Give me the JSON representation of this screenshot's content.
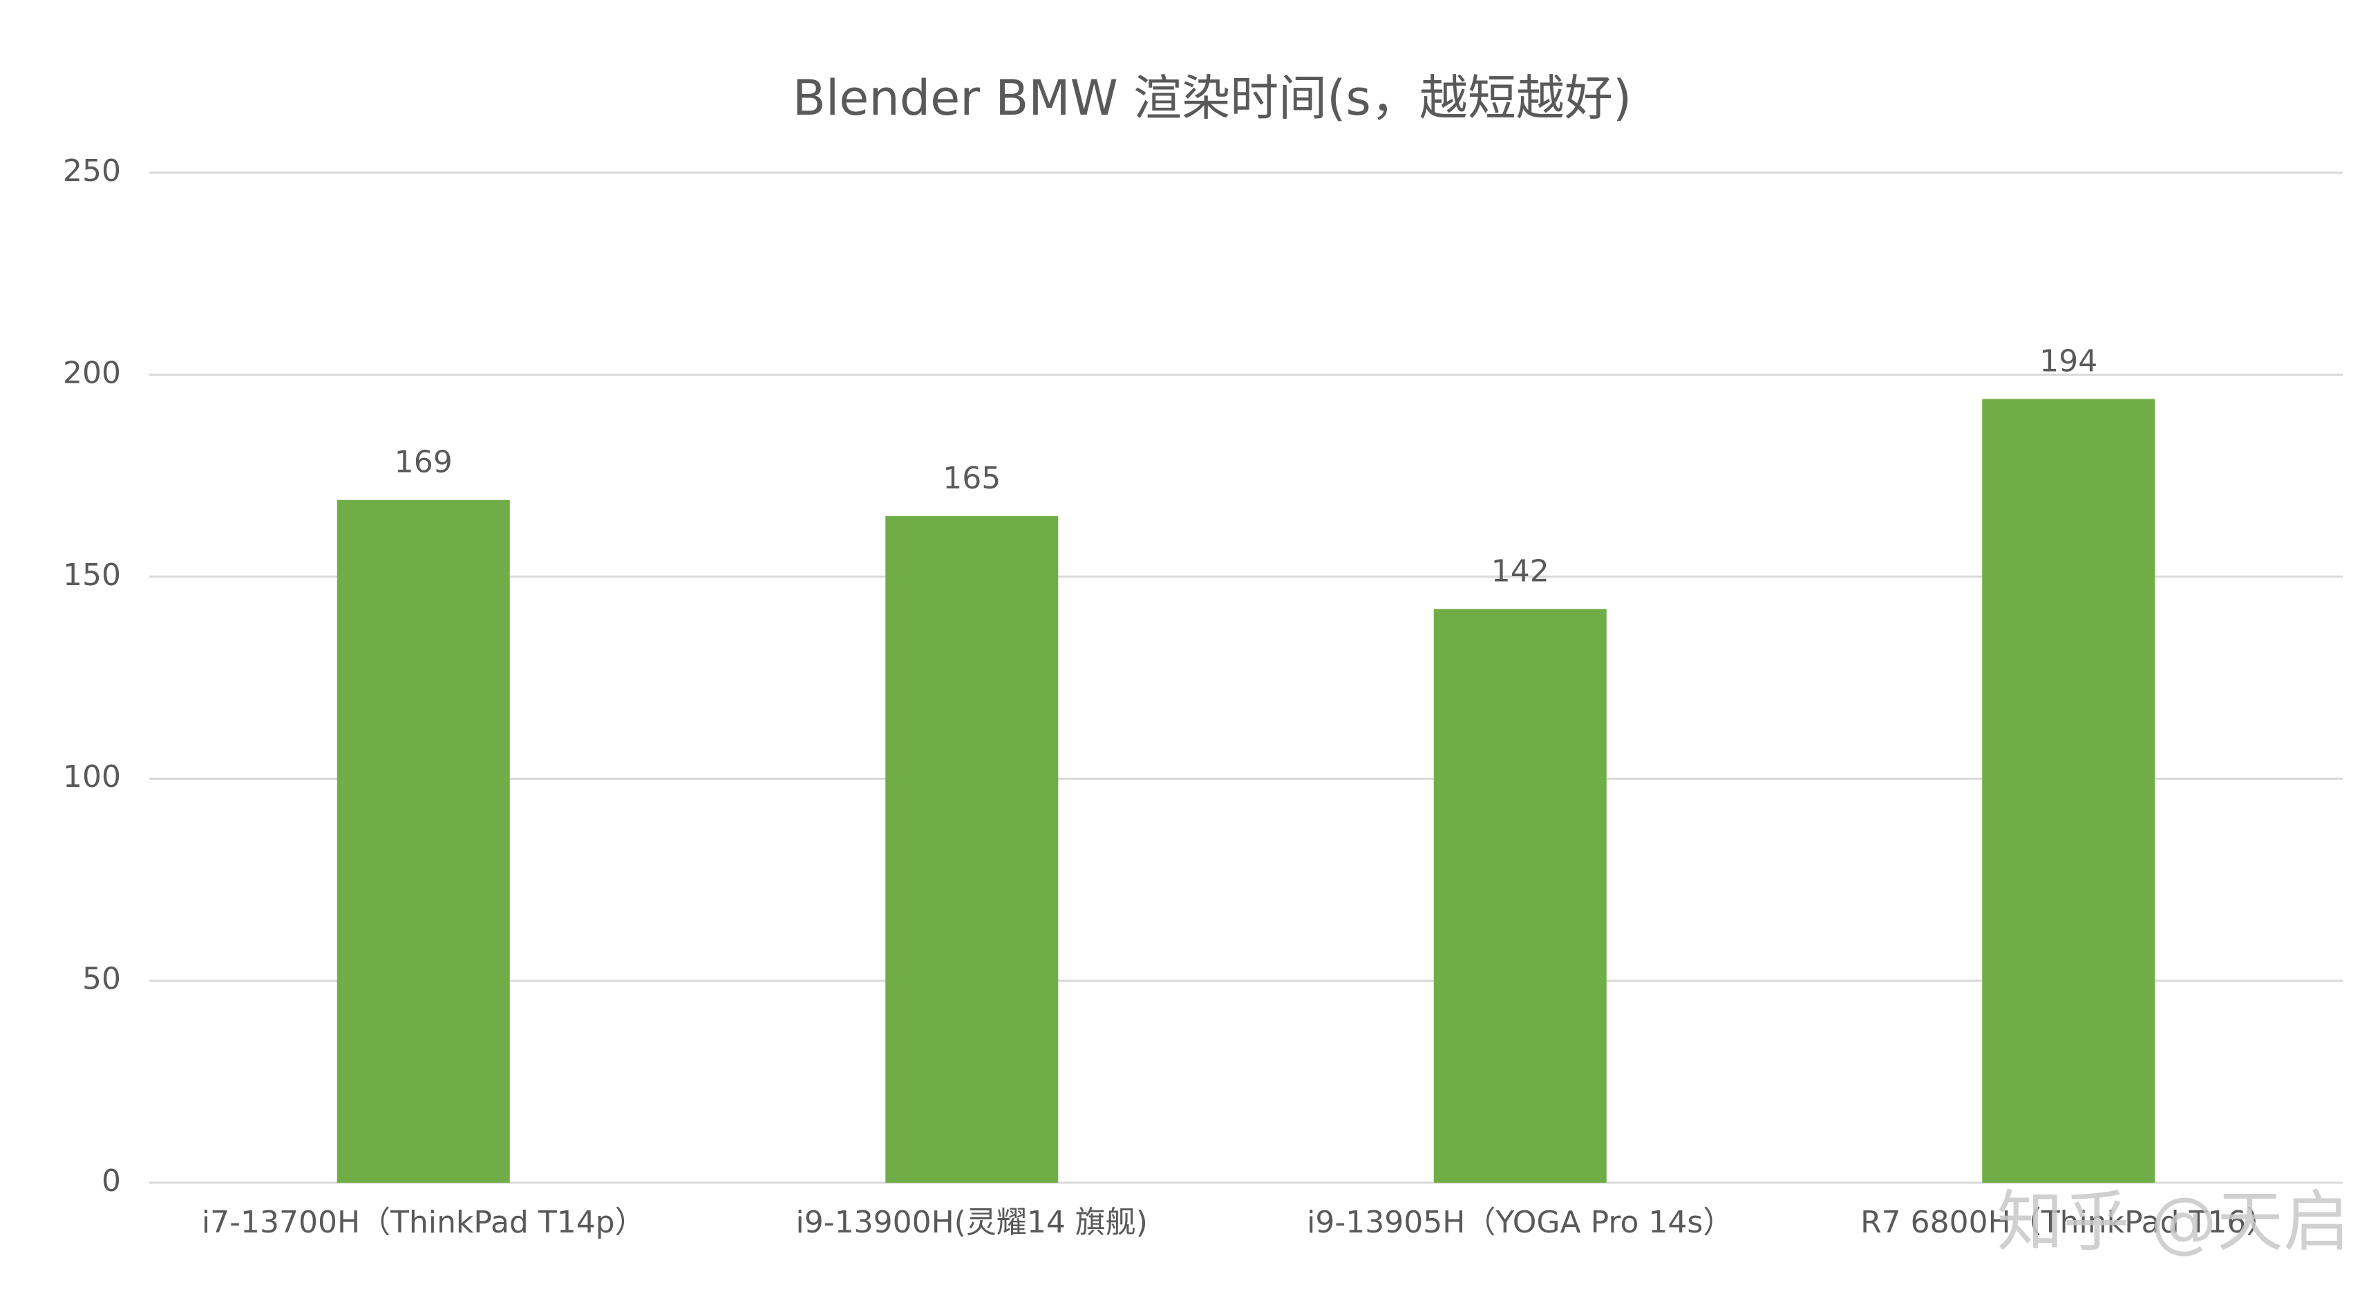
{
  "chart_data": {
    "type": "bar",
    "title": "Blender BMW 渲染时间(s，越短越好)",
    "categories": [
      "i7-13700H（ThinkPad T14p）",
      "i9-13900H(灵耀14 旗舰)",
      "i9-13905H（YOGA Pro 14s）",
      "R7 6800H（ThinkPad T16）"
    ],
    "values": [
      169,
      165,
      142,
      194
    ],
    "color": "#70ad47",
    "ylim": [
      0,
      250
    ],
    "yticks": [
      0,
      50,
      100,
      150,
      200,
      250
    ],
    "grid": true,
    "watermark": "知乎 @天启"
  }
}
